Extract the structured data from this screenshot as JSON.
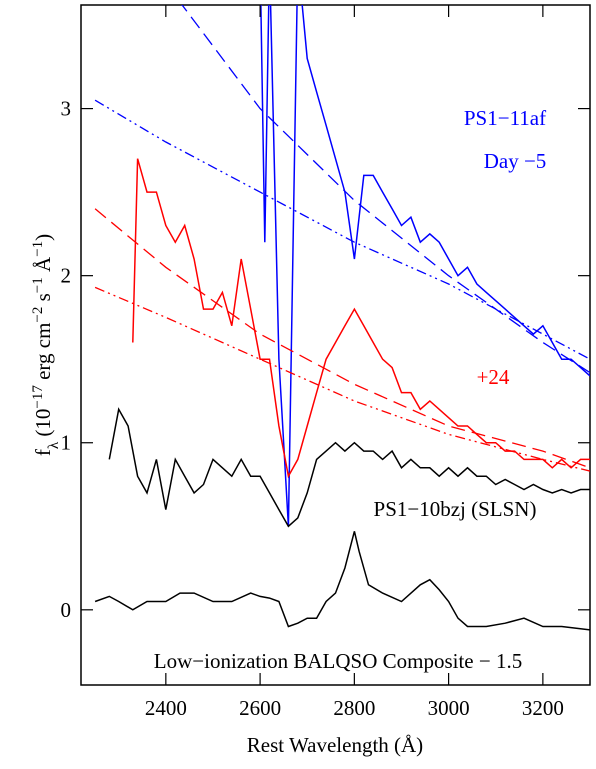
{
  "chart_data": {
    "type": "line",
    "x_label": "Rest Wavelength (Å)",
    "y_label_parts": [
      {
        "text": "f",
        "shift": "base"
      },
      {
        "text": "λ",
        "shift": "sub"
      },
      {
        "text": " (10",
        "shift": "base"
      },
      {
        "text": "−17",
        "shift": "sup"
      },
      {
        "text": " erg cm",
        "shift": "base"
      },
      {
        "text": "−2",
        "shift": "sup"
      },
      {
        "text": " s",
        "shift": "base"
      },
      {
        "text": "−1",
        "shift": "sup"
      },
      {
        "text": " Å",
        "shift": "base"
      },
      {
        "text": "−1",
        "shift": "sup"
      },
      {
        "text": ")",
        "shift": "base"
      }
    ],
    "xlim": [
      2220,
      3300
    ],
    "ylim": [
      -0.45,
      3.62
    ],
    "xticks": [
      2400,
      2600,
      2800,
      3000,
      3200
    ],
    "yticks": [
      0,
      1,
      2,
      3
    ],
    "annotations": [
      {
        "text": "PS1−11af",
        "color": "#0000ff"
      },
      {
        "text": "Day −5",
        "color": "#0000ff"
      },
      {
        "text": "+24",
        "color": "#ff0000"
      },
      {
        "text": "PS1−10bzj (SLSN)",
        "color": "#000000"
      },
      {
        "text": "Low−ionization BALQSO Composite − 1.5",
        "color": "#000000"
      }
    ],
    "series": [
      {
        "color": "#0000ff",
        "dash": "solid",
        "x": [
          2600,
          2610,
          2620,
          2640,
          2660,
          2680,
          2700,
          2720,
          2740,
          2760,
          2780,
          2800,
          2820,
          2840,
          2860,
          2880,
          2900,
          2920,
          2940,
          2960,
          2980,
          3000,
          3020,
          3040,
          3060,
          3080,
          3100,
          3120,
          3140,
          3160,
          3180,
          3200,
          3220,
          3240,
          3260,
          3280,
          3300
        ],
        "values": [
          3.9,
          2.2,
          3.9,
          1.5,
          0.5,
          3.9,
          3.3,
          3.1,
          2.9,
          2.7,
          2.5,
          2.1,
          2.6,
          2.6,
          2.5,
          2.4,
          2.3,
          2.35,
          2.2,
          2.25,
          2.2,
          2.1,
          2.0,
          2.05,
          1.95,
          1.9,
          1.85,
          1.8,
          1.75,
          1.7,
          1.65,
          1.7,
          1.6,
          1.5,
          1.5,
          1.45,
          1.4
        ]
      },
      {
        "color": "#ff0000",
        "dash": "solid",
        "x": [
          2330,
          2340,
          2360,
          2380,
          2400,
          2420,
          2440,
          2460,
          2480,
          2500,
          2520,
          2540,
          2560,
          2580,
          2600,
          2620,
          2640,
          2660,
          2680,
          2700,
          2720,
          2740,
          2760,
          2780,
          2800,
          2820,
          2840,
          2860,
          2880,
          2900,
          2920,
          2940,
          2960,
          2980,
          3000,
          3020,
          3040,
          3060,
          3080,
          3100,
          3120,
          3140,
          3160,
          3180,
          3200,
          3220,
          3240,
          3260,
          3280,
          3300
        ],
        "values": [
          1.6,
          2.7,
          2.5,
          2.5,
          2.3,
          2.2,
          2.3,
          2.1,
          1.8,
          1.8,
          1.9,
          1.7,
          2.1,
          1.8,
          1.5,
          1.5,
          1.1,
          0.8,
          0.9,
          1.1,
          1.3,
          1.5,
          1.6,
          1.7,
          1.8,
          1.7,
          1.6,
          1.5,
          1.45,
          1.3,
          1.3,
          1.2,
          1.25,
          1.2,
          1.15,
          1.1,
          1.1,
          1.05,
          1.0,
          1.0,
          0.95,
          0.95,
          0.9,
          0.9,
          0.9,
          0.85,
          0.9,
          0.85,
          0.9,
          0.9
        ]
      },
      {
        "color": "#000000",
        "dash": "solid",
        "x": [
          2280,
          2300,
          2320,
          2340,
          2360,
          2380,
          2400,
          2420,
          2440,
          2460,
          2480,
          2500,
          2520,
          2540,
          2560,
          2580,
          2600,
          2620,
          2640,
          2660,
          2680,
          2700,
          2720,
          2740,
          2760,
          2780,
          2800,
          2820,
          2840,
          2860,
          2880,
          2900,
          2920,
          2940,
          2960,
          2980,
          3000,
          3020,
          3040,
          3060,
          3080,
          3100,
          3120,
          3140,
          3160,
          3180,
          3200,
          3220,
          3240,
          3260,
          3280,
          3300
        ],
        "values": [
          0.9,
          1.2,
          1.1,
          0.8,
          0.7,
          0.9,
          0.6,
          0.9,
          0.8,
          0.7,
          0.75,
          0.9,
          0.85,
          0.8,
          0.9,
          0.8,
          0.8,
          0.7,
          0.6,
          0.5,
          0.55,
          0.7,
          0.9,
          0.95,
          1.0,
          0.95,
          1.0,
          0.95,
          0.95,
          0.9,
          0.95,
          0.85,
          0.9,
          0.85,
          0.85,
          0.8,
          0.85,
          0.8,
          0.85,
          0.8,
          0.8,
          0.75,
          0.78,
          0.75,
          0.72,
          0.75,
          0.72,
          0.7,
          0.72,
          0.7,
          0.72,
          0.72
        ]
      },
      {
        "color": "#000000",
        "dash": "solid",
        "x": [
          2250,
          2280,
          2300,
          2330,
          2360,
          2400,
          2430,
          2460,
          2500,
          2540,
          2580,
          2600,
          2620,
          2640,
          2660,
          2680,
          2700,
          2720,
          2740,
          2760,
          2780,
          2800,
          2810,
          2830,
          2860,
          2900,
          2940,
          2960,
          2980,
          3000,
          3020,
          3040,
          3080,
          3120,
          3160,
          3200,
          3240,
          3300
        ],
        "values": [
          0.05,
          0.08,
          0.05,
          0.0,
          0.05,
          0.05,
          0.1,
          0.1,
          0.05,
          0.05,
          0.1,
          0.08,
          0.07,
          0.05,
          -0.1,
          -0.08,
          -0.05,
          -0.05,
          0.05,
          0.1,
          0.25,
          0.47,
          0.35,
          0.15,
          0.1,
          0.05,
          0.15,
          0.18,
          0.12,
          0.05,
          -0.05,
          -0.1,
          -0.1,
          -0.08,
          -0.05,
          -0.1,
          -0.1,
          -0.12
        ]
      },
      {
        "color": "#0000ff",
        "dash": "dashed",
        "x": [
          2400,
          2600,
          2800,
          3000,
          3200,
          3300
        ],
        "values": [
          3.75,
          3.0,
          2.45,
          2.0,
          1.6,
          1.42
        ]
      },
      {
        "color": "#0000ff",
        "dash": "dashdot",
        "x": [
          2250,
          2400,
          2600,
          2800,
          3000,
          3200,
          3300
        ],
        "values": [
          3.05,
          2.8,
          2.5,
          2.2,
          1.95,
          1.65,
          1.5
        ]
      },
      {
        "color": "#ff0000",
        "dash": "dashed",
        "x": [
          2250,
          2400,
          2600,
          2800,
          3000,
          3200,
          3300
        ],
        "values": [
          2.4,
          2.05,
          1.65,
          1.35,
          1.1,
          0.95,
          0.85
        ]
      },
      {
        "color": "#ff0000",
        "dash": "dashdot",
        "x": [
          2250,
          2400,
          2600,
          2800,
          3000,
          3200,
          3300
        ],
        "values": [
          1.93,
          1.75,
          1.5,
          1.25,
          1.05,
          0.9,
          0.83
        ]
      }
    ]
  }
}
